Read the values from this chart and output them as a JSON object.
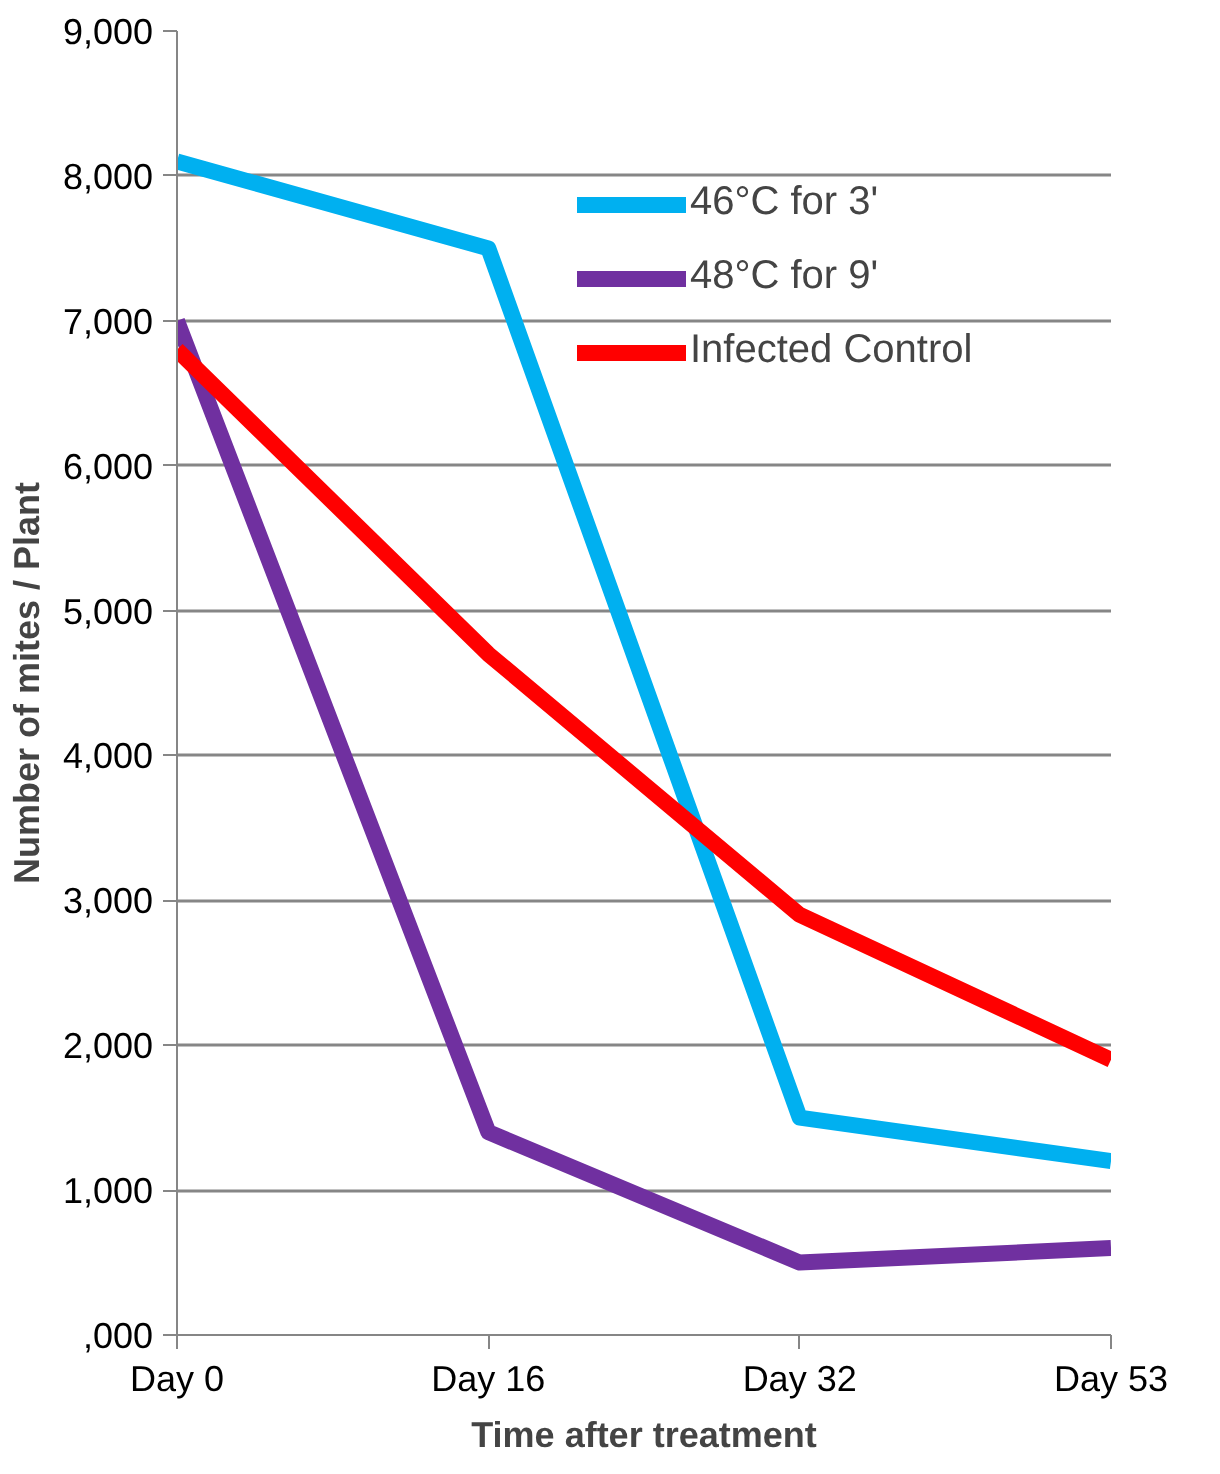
{
  "chart_data": {
    "type": "line",
    "xlabel": "Time after treatment",
    "ylabel": "Number of mites / Plant",
    "categories": [
      "Day 0",
      "Day 16",
      "Day 32",
      "Day 53"
    ],
    "series": [
      {
        "name": "46°C for 3'",
        "color": "#00b0f0",
        "values": [
          8100,
          7500,
          1500,
          1200
        ]
      },
      {
        "name": "48°C for 9'",
        "color": "#7030a0",
        "values": [
          7000,
          1400,
          500,
          600
        ]
      },
      {
        "name": "Infected Control",
        "color": "#ff0000",
        "values": [
          6800,
          4700,
          2900,
          1900
        ]
      }
    ],
    "ylim": [
      0,
      9000
    ],
    "yticks": [
      {
        "value": 0,
        "label": ",000"
      },
      {
        "value": 1000,
        "label": "1,000"
      },
      {
        "value": 2000,
        "label": "2,000"
      },
      {
        "value": 3000,
        "label": "3,000"
      },
      {
        "value": 4000,
        "label": "4,000"
      },
      {
        "value": 5000,
        "label": "5,000"
      },
      {
        "value": 6000,
        "label": "6,000"
      },
      {
        "value": 7000,
        "label": "7,000"
      },
      {
        "value": 8000,
        "label": "8,000"
      },
      {
        "value": 9000,
        "label": "9,000"
      }
    ],
    "grid": "y",
    "legend": "top right",
    "line_style": "solid"
  }
}
